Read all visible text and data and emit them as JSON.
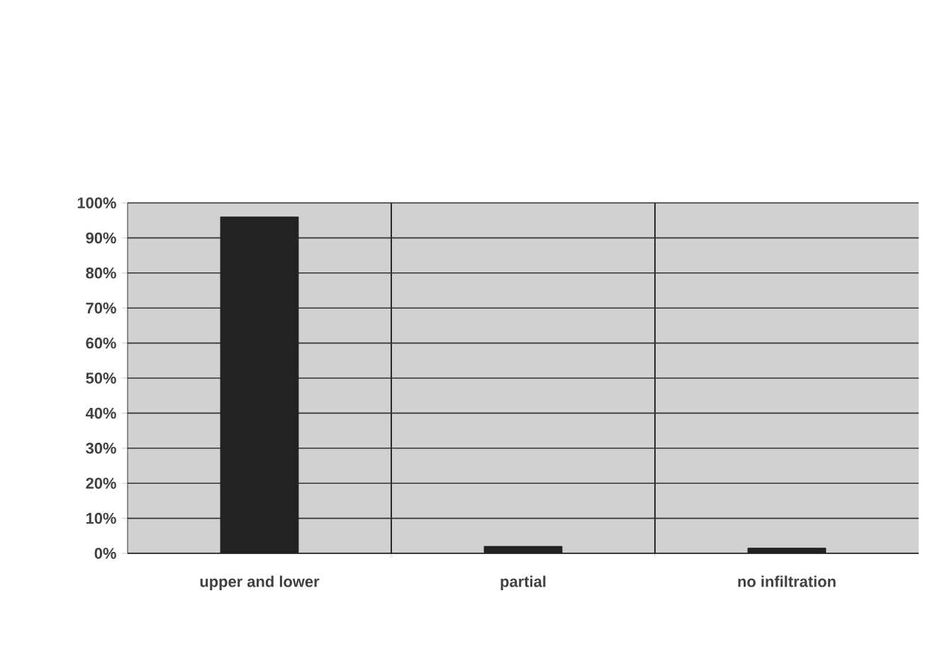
{
  "chart_data": {
    "type": "bar",
    "categories": [
      "upper and lower",
      "partial",
      "no infiltration"
    ],
    "values": [
      96,
      2,
      1.5
    ],
    "color": "#222222",
    "ylim": [
      0,
      100
    ],
    "yticks": [
      {
        "value": 0,
        "label": "0%"
      },
      {
        "value": 10,
        "label": "10%"
      },
      {
        "value": 20,
        "label": "20%"
      },
      {
        "value": 30,
        "label": "30%"
      },
      {
        "value": 40,
        "label": "40%"
      },
      {
        "value": 50,
        "label": "50%"
      },
      {
        "value": 60,
        "label": "60%"
      },
      {
        "value": 70,
        "label": "70%"
      },
      {
        "value": 80,
        "label": "80%"
      },
      {
        "value": 90,
        "label": "90%"
      },
      {
        "value": 100,
        "label": "100%"
      }
    ],
    "grid": "y"
  }
}
